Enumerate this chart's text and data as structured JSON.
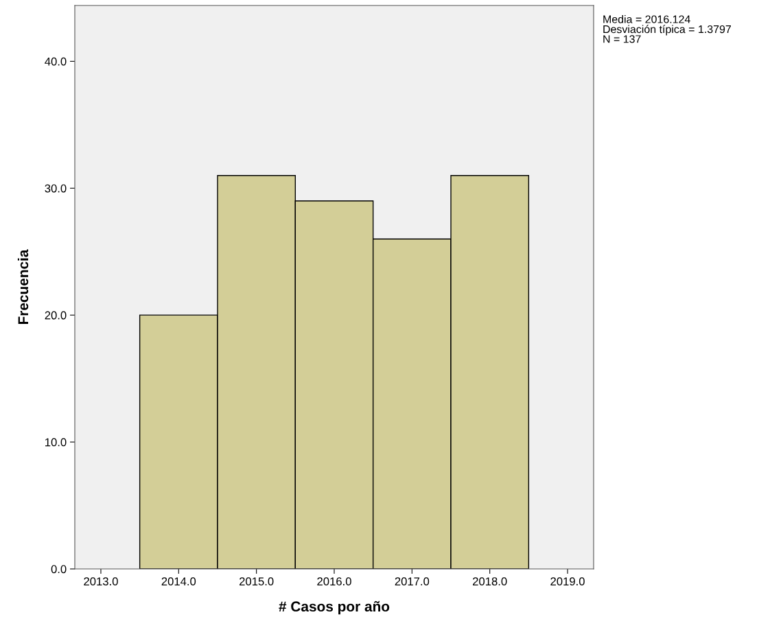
{
  "chart_data": {
    "type": "histogram",
    "xlabel": "# Casos por año",
    "ylabel": "Frecuencia",
    "bins": [
      2013.5,
      2014.5,
      2015.5,
      2016.5,
      2017.5,
      2018.5
    ],
    "values": [
      20,
      31,
      29,
      26,
      31
    ],
    "color": "#d3ce97",
    "xlim": [
      2012.665,
      2019.335
    ],
    "ylim": [
      0,
      44.4
    ],
    "xticks": [
      {
        "value": 2013,
        "label": "2013.0"
      },
      {
        "value": 2014,
        "label": "2014.0"
      },
      {
        "value": 2015,
        "label": "2015.0"
      },
      {
        "value": 2016,
        "label": "2016.0"
      },
      {
        "value": 2017,
        "label": "2017.0"
      },
      {
        "value": 2018,
        "label": "2018.0"
      },
      {
        "value": 2019,
        "label": "2019.0"
      }
    ],
    "yticks": [
      {
        "value": 0,
        "label": "0.0"
      },
      {
        "value": 10,
        "label": "10.0"
      },
      {
        "value": 20,
        "label": "20.0"
      },
      {
        "value": 30,
        "label": "30.0"
      },
      {
        "value": 40,
        "label": "40.0"
      }
    ],
    "grid": false,
    "legend": false,
    "annotations": [
      "Media = 2016.124\nDesviación típica = 1.3797\nN = 137"
    ]
  }
}
